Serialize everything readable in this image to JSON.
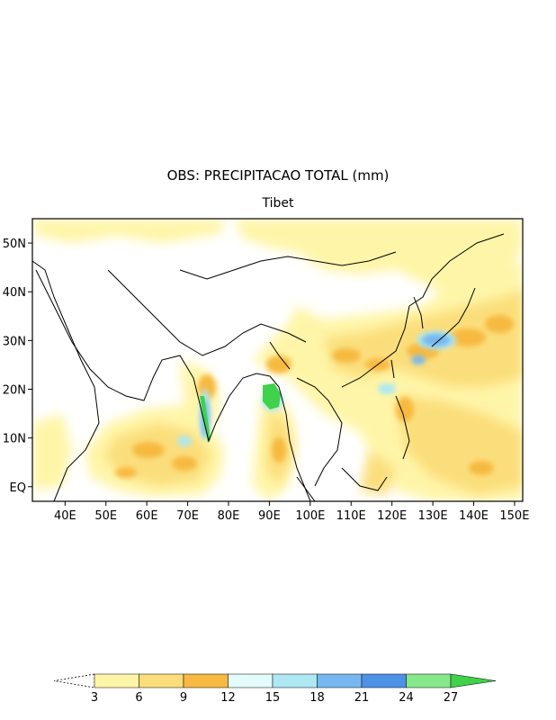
{
  "title": "OBS: PRECIPITACAO TOTAL (mm)",
  "subtitle": "Tibet",
  "map": {
    "lon_range": [
      32,
      152
    ],
    "lat_range": [
      -3,
      55
    ],
    "lon_ticks": [
      {
        "value": 40,
        "label": "40E"
      },
      {
        "value": 50,
        "label": "50E"
      },
      {
        "value": 60,
        "label": "60E"
      },
      {
        "value": 70,
        "label": "70E"
      },
      {
        "value": 80,
        "label": "80E"
      },
      {
        "value": 90,
        "label": "90E"
      },
      {
        "value": 100,
        "label": "100E"
      },
      {
        "value": 110,
        "label": "110E"
      },
      {
        "value": 120,
        "label": "120E"
      },
      {
        "value": 130,
        "label": "130E"
      },
      {
        "value": 140,
        "label": "140E"
      },
      {
        "value": 150,
        "label": "150E"
      }
    ],
    "lat_ticks": [
      {
        "value": 0,
        "label": "EQ"
      },
      {
        "value": 10,
        "label": "10N"
      },
      {
        "value": 20,
        "label": "20N"
      },
      {
        "value": 30,
        "label": "30N"
      },
      {
        "value": 40,
        "label": "40N"
      },
      {
        "value": 50,
        "label": "50N"
      }
    ]
  },
  "colorbar": {
    "levels": [
      "3",
      "6",
      "9",
      "12",
      "15",
      "18",
      "21",
      "24",
      "27"
    ],
    "colors": [
      "#fff5a8",
      "#fbde7c",
      "#f7b941",
      "#e4fbfb",
      "#ade8f3",
      "#75b8ef",
      "#4d92e6",
      "#86e88b",
      "#3fd24a"
    ],
    "under_color": "#ffffff"
  }
}
